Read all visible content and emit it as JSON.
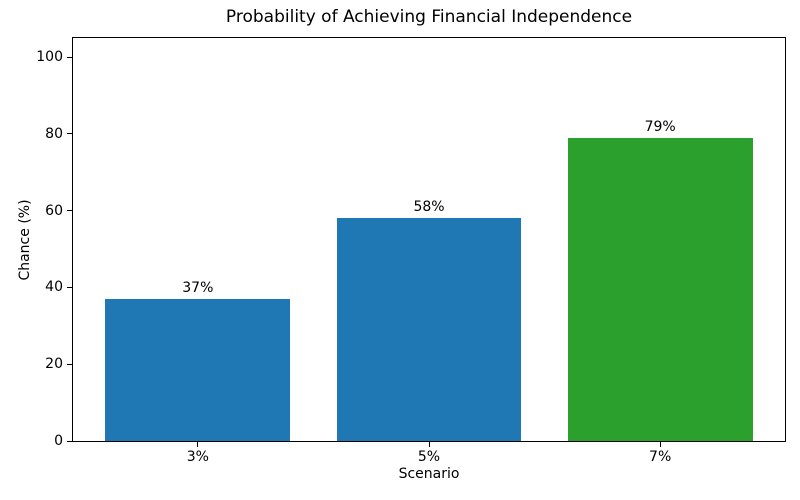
{
  "chart_data": {
    "type": "bar",
    "title": "Probability of Achieving Financial Independence",
    "xlabel": "Scenario",
    "ylabel": "Chance (%)",
    "categories": [
      "3%",
      "5%",
      "7%"
    ],
    "values": [
      37,
      58,
      79
    ],
    "bar_labels": [
      "37%",
      "58%",
      "79%"
    ],
    "bar_colors": [
      "#1f77b4",
      "#1f77b4",
      "#2ca02c"
    ],
    "ylim": [
      0,
      105
    ],
    "yticks": [
      0,
      20,
      40,
      60,
      80,
      100
    ],
    "grid": false,
    "legend_position": "none",
    "background_color": "#ffffff",
    "spine_color": "#000000",
    "text_color": "#000000"
  }
}
